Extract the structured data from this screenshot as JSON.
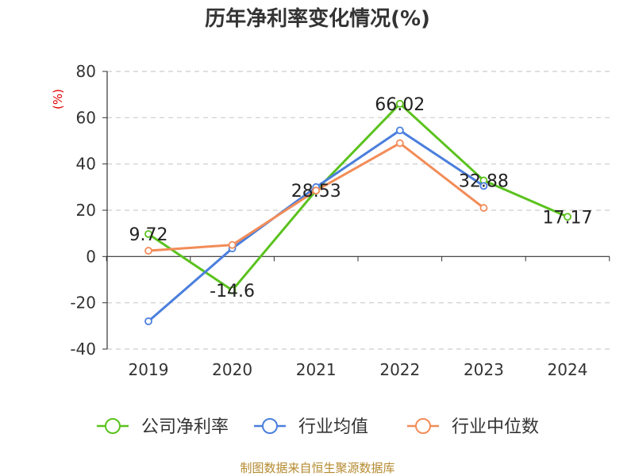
{
  "chart_data": {
    "type": "line",
    "title": "历年净利率变化情况(%)",
    "ylabel": "(%)",
    "categories": [
      "2019",
      "2020",
      "2021",
      "2022",
      "2023",
      "2024"
    ],
    "ylim": [
      -40,
      80
    ],
    "yticks": [
      80,
      60,
      40,
      20,
      0,
      -20,
      -40
    ],
    "grid": true,
    "legend_position": "bottom",
    "series": [
      {
        "name": "公司净利率",
        "color": "#5ac21e",
        "values": [
          9.72,
          -14.6,
          28.53,
          66.02,
          32.88,
          17.17
        ],
        "labels": [
          "9.72",
          "-14.6",
          "28.53",
          "66.02",
          "32.88",
          "17.17"
        ]
      },
      {
        "name": "行业均值",
        "color": "#4a7fdc",
        "values": [
          -28.0,
          3.5,
          30.0,
          54.5,
          30.5,
          null
        ]
      },
      {
        "name": "行业中位数",
        "color": "#f28c58",
        "values": [
          2.5,
          5.0,
          28.5,
          49.0,
          21.0,
          null
        ]
      }
    ],
    "source": "制图数据来自恒生聚源数据库"
  }
}
